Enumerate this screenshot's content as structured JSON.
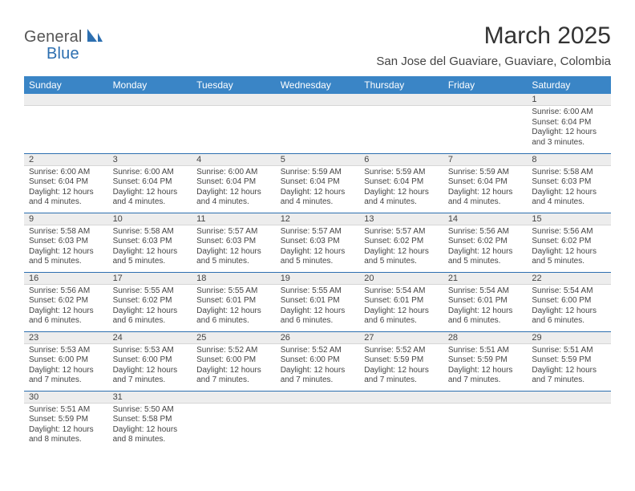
{
  "logo": {
    "text1": "General",
    "text2": "Blue",
    "brand_color": "#2d6fb0",
    "text_color": "#555555"
  },
  "header": {
    "month_title": "March 2025",
    "location": "San Jose del Guaviare, Guaviare, Colombia"
  },
  "styling": {
    "header_bg": "#3a85c6",
    "header_fg": "#ffffff",
    "daynum_bg": "#ededed",
    "row_border": "#2d6fb0",
    "body_fontsize": 10,
    "daynum_fontsize": 11,
    "th_fontsize": 12,
    "title_fontsize": 30,
    "location_fontsize": 15
  },
  "weekdays": [
    "Sunday",
    "Monday",
    "Tuesday",
    "Wednesday",
    "Thursday",
    "Friday",
    "Saturday"
  ],
  "weeks": [
    [
      null,
      null,
      null,
      null,
      null,
      null,
      {
        "n": "1",
        "sr": "Sunrise: 6:00 AM",
        "ss": "Sunset: 6:04 PM",
        "dl": "Daylight: 12 hours and 3 minutes."
      }
    ],
    [
      {
        "n": "2",
        "sr": "Sunrise: 6:00 AM",
        "ss": "Sunset: 6:04 PM",
        "dl": "Daylight: 12 hours and 4 minutes."
      },
      {
        "n": "3",
        "sr": "Sunrise: 6:00 AM",
        "ss": "Sunset: 6:04 PM",
        "dl": "Daylight: 12 hours and 4 minutes."
      },
      {
        "n": "4",
        "sr": "Sunrise: 6:00 AM",
        "ss": "Sunset: 6:04 PM",
        "dl": "Daylight: 12 hours and 4 minutes."
      },
      {
        "n": "5",
        "sr": "Sunrise: 5:59 AM",
        "ss": "Sunset: 6:04 PM",
        "dl": "Daylight: 12 hours and 4 minutes."
      },
      {
        "n": "6",
        "sr": "Sunrise: 5:59 AM",
        "ss": "Sunset: 6:04 PM",
        "dl": "Daylight: 12 hours and 4 minutes."
      },
      {
        "n": "7",
        "sr": "Sunrise: 5:59 AM",
        "ss": "Sunset: 6:04 PM",
        "dl": "Daylight: 12 hours and 4 minutes."
      },
      {
        "n": "8",
        "sr": "Sunrise: 5:58 AM",
        "ss": "Sunset: 6:03 PM",
        "dl": "Daylight: 12 hours and 4 minutes."
      }
    ],
    [
      {
        "n": "9",
        "sr": "Sunrise: 5:58 AM",
        "ss": "Sunset: 6:03 PM",
        "dl": "Daylight: 12 hours and 5 minutes."
      },
      {
        "n": "10",
        "sr": "Sunrise: 5:58 AM",
        "ss": "Sunset: 6:03 PM",
        "dl": "Daylight: 12 hours and 5 minutes."
      },
      {
        "n": "11",
        "sr": "Sunrise: 5:57 AM",
        "ss": "Sunset: 6:03 PM",
        "dl": "Daylight: 12 hours and 5 minutes."
      },
      {
        "n": "12",
        "sr": "Sunrise: 5:57 AM",
        "ss": "Sunset: 6:03 PM",
        "dl": "Daylight: 12 hours and 5 minutes."
      },
      {
        "n": "13",
        "sr": "Sunrise: 5:57 AM",
        "ss": "Sunset: 6:02 PM",
        "dl": "Daylight: 12 hours and 5 minutes."
      },
      {
        "n": "14",
        "sr": "Sunrise: 5:56 AM",
        "ss": "Sunset: 6:02 PM",
        "dl": "Daylight: 12 hours and 5 minutes."
      },
      {
        "n": "15",
        "sr": "Sunrise: 5:56 AM",
        "ss": "Sunset: 6:02 PM",
        "dl": "Daylight: 12 hours and 5 minutes."
      }
    ],
    [
      {
        "n": "16",
        "sr": "Sunrise: 5:56 AM",
        "ss": "Sunset: 6:02 PM",
        "dl": "Daylight: 12 hours and 6 minutes."
      },
      {
        "n": "17",
        "sr": "Sunrise: 5:55 AM",
        "ss": "Sunset: 6:02 PM",
        "dl": "Daylight: 12 hours and 6 minutes."
      },
      {
        "n": "18",
        "sr": "Sunrise: 5:55 AM",
        "ss": "Sunset: 6:01 PM",
        "dl": "Daylight: 12 hours and 6 minutes."
      },
      {
        "n": "19",
        "sr": "Sunrise: 5:55 AM",
        "ss": "Sunset: 6:01 PM",
        "dl": "Daylight: 12 hours and 6 minutes."
      },
      {
        "n": "20",
        "sr": "Sunrise: 5:54 AM",
        "ss": "Sunset: 6:01 PM",
        "dl": "Daylight: 12 hours and 6 minutes."
      },
      {
        "n": "21",
        "sr": "Sunrise: 5:54 AM",
        "ss": "Sunset: 6:01 PM",
        "dl": "Daylight: 12 hours and 6 minutes."
      },
      {
        "n": "22",
        "sr": "Sunrise: 5:54 AM",
        "ss": "Sunset: 6:00 PM",
        "dl": "Daylight: 12 hours and 6 minutes."
      }
    ],
    [
      {
        "n": "23",
        "sr": "Sunrise: 5:53 AM",
        "ss": "Sunset: 6:00 PM",
        "dl": "Daylight: 12 hours and 7 minutes."
      },
      {
        "n": "24",
        "sr": "Sunrise: 5:53 AM",
        "ss": "Sunset: 6:00 PM",
        "dl": "Daylight: 12 hours and 7 minutes."
      },
      {
        "n": "25",
        "sr": "Sunrise: 5:52 AM",
        "ss": "Sunset: 6:00 PM",
        "dl": "Daylight: 12 hours and 7 minutes."
      },
      {
        "n": "26",
        "sr": "Sunrise: 5:52 AM",
        "ss": "Sunset: 6:00 PM",
        "dl": "Daylight: 12 hours and 7 minutes."
      },
      {
        "n": "27",
        "sr": "Sunrise: 5:52 AM",
        "ss": "Sunset: 5:59 PM",
        "dl": "Daylight: 12 hours and 7 minutes."
      },
      {
        "n": "28",
        "sr": "Sunrise: 5:51 AM",
        "ss": "Sunset: 5:59 PM",
        "dl": "Daylight: 12 hours and 7 minutes."
      },
      {
        "n": "29",
        "sr": "Sunrise: 5:51 AM",
        "ss": "Sunset: 5:59 PM",
        "dl": "Daylight: 12 hours and 7 minutes."
      }
    ],
    [
      {
        "n": "30",
        "sr": "Sunrise: 5:51 AM",
        "ss": "Sunset: 5:59 PM",
        "dl": "Daylight: 12 hours and 8 minutes."
      },
      {
        "n": "31",
        "sr": "Sunrise: 5:50 AM",
        "ss": "Sunset: 5:58 PM",
        "dl": "Daylight: 12 hours and 8 minutes."
      },
      null,
      null,
      null,
      null,
      null
    ]
  ]
}
